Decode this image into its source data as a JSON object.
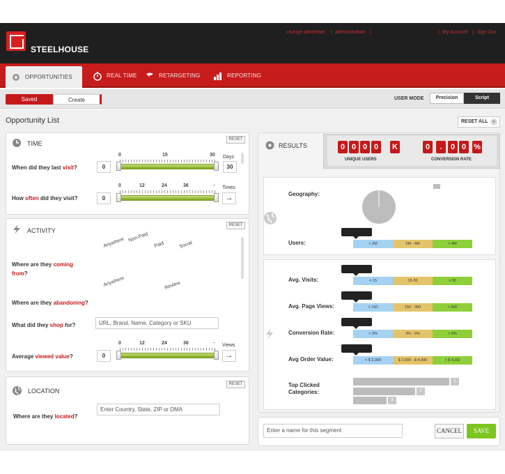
{
  "brand": {
    "name": "STEELHOUSE"
  },
  "top_links": {
    "change_advertiser": "change advertiser",
    "sep1": "|",
    "administration": "administration",
    "sep2": "|",
    "sep3": "|",
    "my_account": "My Account",
    "sep4": "|",
    "sign_out": "Sign Out"
  },
  "nav": {
    "tabs": [
      {
        "label": "OPPORTUNITIES"
      },
      {
        "label": "REAL TIME"
      },
      {
        "label": "RETARGETING"
      },
      {
        "label": "REPORTING"
      }
    ]
  },
  "subbar": {
    "saved": "Saved",
    "create": "Create",
    "user_mode": "USER MODE",
    "precision": "Precision",
    "script": "Script"
  },
  "page": {
    "title": "Opportunity List",
    "reset_all": "RESET ALL",
    "reset_all_icon": "close-icon"
  },
  "time": {
    "title": "TIME",
    "reset": "RESET",
    "q1": {
      "pre": "When did they last ",
      "em": "visit",
      "post": "?",
      "min": "0",
      "max": "30",
      "unit": "Days",
      "ticks": [
        "0",
        "15",
        "30"
      ]
    },
    "q2": {
      "pre": "How ",
      "em": "often",
      "post": " did they visit?",
      "min": "0",
      "max_icon": "arrow-right-icon",
      "arrow": "→",
      "unit": "Times",
      "ticks": [
        "0",
        "12",
        "24",
        "36",
        "→"
      ]
    }
  },
  "activity": {
    "title": "ACTIVITY",
    "reset": "RESET",
    "coming_opts": [
      "Anywhere",
      "Non-Paid",
      "Paid",
      "Social"
    ],
    "q_coming": {
      "pre": "Where are they ",
      "em": "coming from",
      "post": "?"
    },
    "abandon_opts": [
      "Anywhere",
      "Review"
    ],
    "q_abandon": {
      "pre": "Where are they ",
      "em": "abandoning",
      "post": "?"
    },
    "q_shop": {
      "pre": "What did they ",
      "em": "shop",
      "post": " for?",
      "placeholder": "URL, Brand, Name, Category or SKU"
    },
    "q_value": {
      "pre": "Average ",
      "em": "viewed value",
      "post": "?",
      "min": "0",
      "arrow": "→",
      "unit": "Views",
      "ticks": [
        "0",
        "12",
        "24",
        "36",
        "→"
      ]
    }
  },
  "location": {
    "title": "LOCATION",
    "reset": "RESET",
    "q": {
      "pre": "Where are they ",
      "em": "located",
      "post": "?",
      "placeholder": "Enter Country, State, ZIP or DMA"
    }
  },
  "results": {
    "title": "RESULTS",
    "unique_users": {
      "digits": [
        "0",
        "0",
        "0",
        "0",
        "K"
      ],
      "label": "UNIQUE USERS"
    },
    "conversion_rate": {
      "digits": [
        "0",
        ".",
        "0",
        "0",
        "%"
      ],
      "label": "CONVERSION RATE"
    },
    "geography": "Geography:",
    "users": {
      "label": "Users:",
      "bars": [
        "< 2M",
        "2M - 4M",
        "> 4M"
      ]
    },
    "avg_visits": {
      "label": "Avg. Visits:",
      "bars": [
        "< 15",
        "15-30",
        "> 30"
      ]
    },
    "avg_page_views": {
      "label": "Avg. Page Views:",
      "bars": [
        "< 150",
        "150 - 300",
        "> 300"
      ]
    },
    "conversion": {
      "label": "Conversion Rate:",
      "bars": [
        "< 3%",
        "3% - 6%",
        "> 6%"
      ]
    },
    "avg_order": {
      "label": "Avg Order Value:",
      "bars": [
        "< $ 2,000",
        "$ 2,000 - $ 4,000",
        "> $ 4,00("
      ]
    },
    "top_clicked": {
      "label1": "Top Clicked",
      "label2": "Categories:",
      "ranks": [
        "1",
        "2",
        "3"
      ]
    }
  },
  "segment": {
    "placeholder": "Enter a name for this segment",
    "cancel": "CANCEL",
    "save": "SAVE"
  }
}
